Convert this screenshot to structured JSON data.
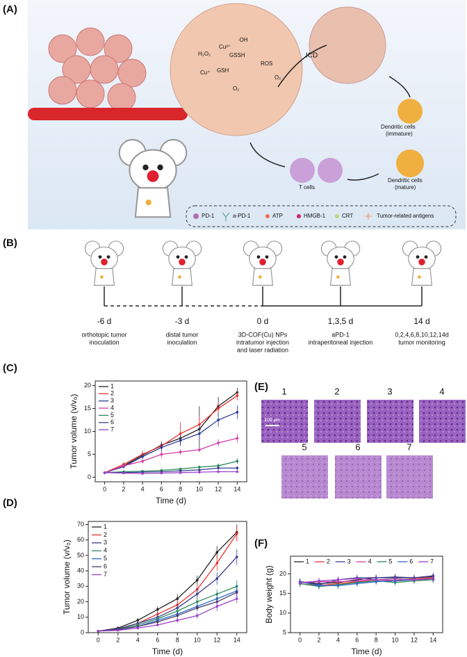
{
  "panel_a": {
    "label": "(A)",
    "icd": "ICD",
    "h2o2": "H₂O₂",
    "cu2": "Cu²⁺",
    "gssh": "GSSH",
    "oh": "·OH",
    "cu1": "Cu⁺",
    "gsh": "GSH",
    "ros": "ROS",
    "o2a": "O₂",
    "o2b": "O₂",
    "dc_immature": [
      "Dendritic cells",
      "(immature)"
    ],
    "dc_mature": [
      "Dendritic cells",
      "(mature)"
    ],
    "t_cells": "T cells",
    "legend": [
      "PD-1",
      "a-PD-1",
      "ATP",
      "HMGB-1",
      "CRT",
      "Tumor-related antigens"
    ]
  },
  "panel_b": {
    "label": "(B)",
    "events": [
      {
        "day": "-6 d",
        "lines": [
          "orthotopic tumor",
          "inoculation"
        ]
      },
      {
        "day": "-3 d",
        "lines": [
          "distal tumor",
          "inoculation"
        ]
      },
      {
        "day": "0 d",
        "lines": [
          "3D-COF(Cu) NPs",
          "intratumor injection",
          "and laser radiation"
        ]
      },
      {
        "day": "1,3,5 d",
        "lines": [
          "aPD-1",
          "intraperitoneal injection"
        ]
      },
      {
        "day": "14 d",
        "lines": [
          "0,2,4,6,8,10,12,14d",
          "tumor monitoring"
        ]
      }
    ]
  },
  "panel_e": {
    "label": "(E)",
    "groups": [
      "1",
      "2",
      "3",
      "4",
      "5",
      "6",
      "7"
    ],
    "scale": "100 μm"
  },
  "chart_data": [
    {
      "type": "line",
      "panel": "(C)",
      "xlabel": "Time (d)",
      "ylabel": "Tumor volume (v/v₀)",
      "legend": "upper left",
      "x": [
        0,
        2,
        4,
        6,
        8,
        10,
        12,
        14
      ],
      "xlim": [
        -1,
        15
      ],
      "xticks": [
        0,
        2,
        4,
        6,
        8,
        10,
        12,
        14
      ],
      "ylim": [
        -1,
        21
      ],
      "yticks": [
        0,
        5,
        10,
        15,
        20
      ],
      "series": [
        {
          "name": "1",
          "color": "#222222",
          "values": [
            1,
            2.5,
            4.8,
            7,
            8.5,
            10.5,
            15.5,
            18.5
          ],
          "errors": [
            0.1,
            0.3,
            0.6,
            0.8,
            1.5,
            5,
            2,
            1
          ]
        },
        {
          "name": "2",
          "color": "#e8322f",
          "values": [
            1,
            2.8,
            5,
            6.8,
            9.5,
            11.5,
            15,
            17.8
          ],
          "errors": [
            0.1,
            0.5,
            0.8,
            1,
            2.5,
            2,
            1.5,
            1
          ]
        },
        {
          "name": "3",
          "color": "#2b3a9a",
          "values": [
            1,
            2.3,
            4.5,
            6.5,
            8,
            9.5,
            12.5,
            14.2
          ],
          "errors": [
            0.1,
            0.4,
            0.6,
            1,
            1.2,
            1.5,
            1.5,
            1.5
          ]
        },
        {
          "name": "4",
          "color": "#d23ba8",
          "values": [
            1,
            2.5,
            3.5,
            5,
            5.5,
            6,
            7.5,
            8.5
          ],
          "errors": [
            0.1,
            0.4,
            0.5,
            0.8,
            0.6,
            0.5,
            0.8,
            1
          ]
        },
        {
          "name": "5",
          "color": "#2a8a5a",
          "values": [
            1,
            1.2,
            1.3,
            1.5,
            1.8,
            2.2,
            2.5,
            3.5
          ],
          "errors": [
            0.1,
            0.2,
            0.2,
            0.3,
            0.3,
            0.4,
            0.5,
            0.6
          ]
        },
        {
          "name": "6",
          "color": "#3a3f8f",
          "values": [
            1,
            1,
            1.1,
            1.2,
            1.4,
            1.6,
            2,
            2
          ],
          "errors": [
            0.1,
            0.2,
            0.2,
            0.2,
            0.3,
            0.3,
            0.4,
            0.4
          ]
        },
        {
          "name": "7",
          "color": "#9b3fc8",
          "values": [
            1,
            0.9,
            0.8,
            0.9,
            1,
            1.1,
            1.2,
            1.2
          ],
          "errors": [
            0.1,
            0.2,
            0.2,
            0.2,
            0.2,
            0.3,
            0.3,
            0.3
          ]
        }
      ]
    },
    {
      "type": "line",
      "panel": "(D)",
      "xlabel": "Time (d)",
      "ylabel": "Tumor volume (v/v₀)",
      "legend": "upper left",
      "x": [
        0,
        2,
        4,
        6,
        8,
        10,
        12,
        14
      ],
      "xlim": [
        -1,
        15
      ],
      "xticks": [
        0,
        2,
        4,
        6,
        8,
        10,
        12,
        14
      ],
      "ylim": [
        0,
        72
      ],
      "yticks": [
        0,
        10,
        20,
        30,
        40,
        50,
        60,
        70
      ],
      "series": [
        {
          "name": "1",
          "color": "#222222",
          "values": [
            1,
            3,
            8,
            15,
            22,
            34,
            52,
            65
          ],
          "errors": [
            0.2,
            1,
            1.5,
            2,
            3,
            3,
            4,
            5
          ]
        },
        {
          "name": "2",
          "color": "#e8322f",
          "values": [
            1,
            2.5,
            6,
            12,
            18,
            28,
            45,
            64
          ],
          "errors": [
            0.2,
            1,
            1.5,
            2,
            3,
            4,
            5,
            5
          ]
        },
        {
          "name": "3",
          "color": "#3a3f8f",
          "values": [
            1,
            2.5,
            6,
            10,
            16,
            25,
            35,
            49
          ],
          "errors": [
            0.2,
            1,
            1.5,
            2,
            3,
            4,
            4,
            5
          ]
        },
        {
          "name": "4",
          "color": "#2a8a5a",
          "values": [
            1,
            2,
            5,
            9,
            14,
            20,
            25,
            30
          ],
          "errors": [
            0.2,
            1,
            1,
            2,
            2,
            3,
            3,
            4
          ]
        },
        {
          "name": "5",
          "color": "#2b6ac8",
          "values": [
            1,
            2,
            4,
            8,
            12,
            17,
            22,
            27
          ],
          "errors": [
            0.2,
            1,
            1,
            2,
            2,
            3,
            3,
            4
          ]
        },
        {
          "name": "6",
          "color": "#4a3a6a",
          "values": [
            1,
            2,
            4,
            7,
            11,
            16,
            20,
            26
          ],
          "errors": [
            0.2,
            1,
            1,
            1.5,
            2,
            2,
            3,
            3
          ]
        },
        {
          "name": "7",
          "color": "#9b3fc8",
          "values": [
            1,
            1.5,
            3,
            5,
            8,
            11,
            17,
            22
          ],
          "errors": [
            0.2,
            0.5,
            1,
            1,
            1.5,
            2,
            3,
            3
          ]
        }
      ]
    },
    {
      "type": "line",
      "panel": "(F)",
      "xlabel": "Time (d)",
      "ylabel": "Body weight (g)",
      "legend": "top",
      "x": [
        0,
        2,
        4,
        6,
        8,
        10,
        12,
        14
      ],
      "xlim": [
        -1,
        15
      ],
      "xticks": [
        0,
        2,
        4,
        6,
        8,
        10,
        12,
        14
      ],
      "ylim": [
        5,
        24.5
      ],
      "yticks": [
        5,
        10,
        15,
        20
      ],
      "series": [
        {
          "name": "1",
          "color": "#222222",
          "values": [
            18,
            17.5,
            17.8,
            18.5,
            19,
            19,
            19,
            19.3
          ],
          "errors": [
            0.8,
            0.8,
            0.8,
            0.8,
            0.8,
            0.8,
            0.8,
            0.8
          ]
        },
        {
          "name": "2",
          "color": "#e8322f",
          "values": [
            17.5,
            17,
            17.5,
            18,
            18.5,
            18.3,
            18.8,
            19
          ],
          "errors": [
            0.8,
            0.8,
            0.8,
            0.8,
            0.8,
            0.8,
            0.8,
            0.8
          ]
        },
        {
          "name": "3",
          "color": "#3a3f8f",
          "values": [
            18,
            17.2,
            18.5,
            19,
            19,
            19.2,
            19,
            19.5
          ],
          "errors": [
            0.8,
            0.8,
            0.8,
            0.8,
            0.8,
            0.8,
            0.8,
            0.8
          ]
        },
        {
          "name": "4",
          "color": "#d23ba8",
          "values": [
            17.8,
            18,
            18,
            18.2,
            18.5,
            18.2,
            18.5,
            18.5
          ],
          "errors": [
            0.8,
            0.8,
            0.8,
            0.8,
            0.8,
            0.8,
            0.8,
            0.8
          ]
        },
        {
          "name": "5",
          "color": "#2a8a5a",
          "values": [
            17.5,
            16.8,
            17.2,
            17.8,
            18.2,
            17.8,
            18.2,
            18.5
          ],
          "errors": [
            0.8,
            0.8,
            0.8,
            0.8,
            0.8,
            0.8,
            0.8,
            0.8
          ]
        },
        {
          "name": "6",
          "color": "#2b6ac8",
          "values": [
            18,
            17,
            17,
            17.5,
            18,
            18.2,
            18.5,
            18.8
          ],
          "errors": [
            0.8,
            0.8,
            0.8,
            0.8,
            0.8,
            0.8,
            0.8,
            0.8
          ]
        },
        {
          "name": "7",
          "color": "#9b3fc8",
          "values": [
            17.7,
            18.2,
            18.5,
            18.8,
            18.5,
            18.7,
            18.5,
            18.8
          ],
          "errors": [
            0.8,
            0.8,
            0.8,
            0.8,
            0.8,
            0.8,
            0.8,
            0.8
          ]
        }
      ]
    }
  ]
}
